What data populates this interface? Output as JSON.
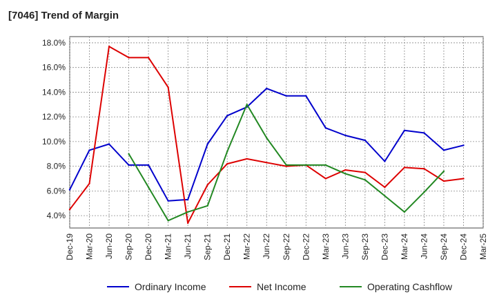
{
  "chart_data": {
    "type": "line",
    "title": "[7046]  Trend of Margin",
    "xlabel": "",
    "ylabel": "",
    "categories": [
      "Dec-19",
      "Mar-20",
      "Jun-20",
      "Sep-20",
      "Dec-20",
      "Mar-21",
      "Jun-21",
      "Sep-21",
      "Dec-21",
      "Mar-22",
      "Jun-22",
      "Sep-22",
      "Dec-22",
      "Mar-23",
      "Jun-23",
      "Sep-23",
      "Dec-23",
      "Mar-24",
      "Jun-24",
      "Sep-24",
      "Dec-24",
      "Mar-25"
    ],
    "ylim": [
      3.0,
      18.5
    ],
    "yticks": [
      4.0,
      6.0,
      8.0,
      10.0,
      12.0,
      14.0,
      16.0,
      18.0
    ],
    "ytick_labels": [
      "4.0%",
      "6.0%",
      "8.0%",
      "10.0%",
      "12.0%",
      "14.0%",
      "16.0%",
      "18.0%"
    ],
    "grid": true,
    "legend_position": "bottom",
    "series": [
      {
        "name": "Ordinary Income",
        "color": "#0000cc",
        "values": [
          6.1,
          9.3,
          9.8,
          8.1,
          8.1,
          5.2,
          5.3,
          9.8,
          12.1,
          12.8,
          14.3,
          13.7,
          13.7,
          11.1,
          10.5,
          10.1,
          8.4,
          10.9,
          10.7,
          9.3,
          9.7,
          null
        ]
      },
      {
        "name": "Net Income",
        "color": "#dd0000",
        "values": [
          4.5,
          6.6,
          17.7,
          16.8,
          16.8,
          14.4,
          3.4,
          6.5,
          8.2,
          8.6,
          8.3,
          8.0,
          8.1,
          7.0,
          7.7,
          7.5,
          6.3,
          7.9,
          7.8,
          6.8,
          7.0,
          null
        ]
      },
      {
        "name": "Operating Cashflow",
        "color": "#228822",
        "values": [
          null,
          null,
          null,
          9.0,
          6.3,
          3.6,
          4.3,
          4.8,
          9.2,
          13.0,
          10.3,
          8.1,
          8.1,
          8.1,
          7.4,
          6.9,
          5.6,
          4.3,
          5.9,
          7.6,
          null,
          null
        ]
      }
    ]
  }
}
